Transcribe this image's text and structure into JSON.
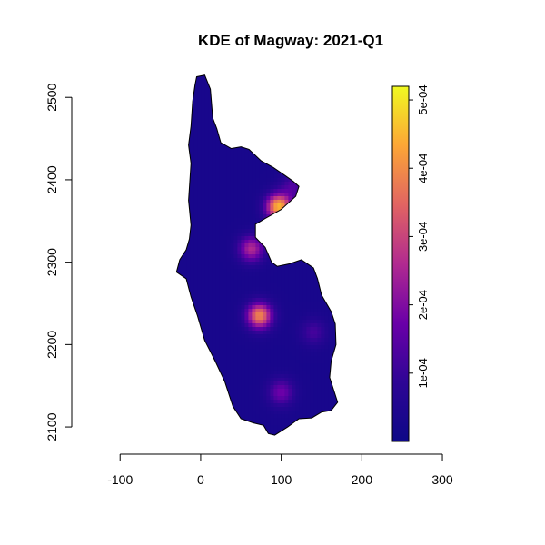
{
  "chart_data": {
    "type": "heatmap",
    "title": "KDE of Magway: 2021-Q1",
    "xlabel": "",
    "ylabel": "",
    "xlim": [
      -160,
      380
    ],
    "ylim": [
      2067,
      2530
    ],
    "x_ticks": [
      -100,
      0,
      100,
      200,
      300
    ],
    "y_ticks": [
      2100,
      2200,
      2300,
      2400,
      2500
    ],
    "x_tick_labels": [
      "-100",
      "0",
      "100",
      "200",
      "300"
    ],
    "y_tick_labels": [
      "2100",
      "2200",
      "2300",
      "2400",
      "2500"
    ],
    "colorbar": {
      "min": 0,
      "max": 0.00052,
      "ticks": [
        0.0001,
        0.0002,
        0.0003,
        0.0004,
        0.0005
      ],
      "tick_labels": [
        "1e-04",
        "2e-04",
        "3e-04",
        "4e-04",
        "5e-04"
      ],
      "colors": [
        "#0d0887",
        "#2e0595",
        "#6a00a8",
        "#b12a90",
        "#e16462",
        "#fca636",
        "#f0f921"
      ]
    },
    "background_density": 3e-05,
    "hotspots": [
      {
        "x": 73,
        "y": 2235,
        "peak": 0.00036
      },
      {
        "x": 97,
        "y": 2367,
        "peak": 0.00042
      },
      {
        "x": 63,
        "y": 2316,
        "peak": 0.00023
      },
      {
        "x": 100,
        "y": 2142,
        "peak": 0.00015
      },
      {
        "x": 140,
        "y": 2215,
        "peak": 9e-05
      },
      {
        "x": 115,
        "y": 2392,
        "peak": 0.0001
      }
    ],
    "region_outline": [
      [
        -5,
        2525
      ],
      [
        5,
        2527
      ],
      [
        12,
        2510
      ],
      [
        15,
        2475
      ],
      [
        20,
        2462
      ],
      [
        25,
        2445
      ],
      [
        38,
        2438
      ],
      [
        50,
        2440
      ],
      [
        60,
        2437
      ],
      [
        75,
        2423
      ],
      [
        90,
        2415
      ],
      [
        105,
        2405
      ],
      [
        115,
        2398
      ],
      [
        122,
        2392
      ],
      [
        118,
        2380
      ],
      [
        100,
        2364
      ],
      [
        80,
        2353
      ],
      [
        68,
        2346
      ],
      [
        68,
        2330
      ],
      [
        80,
        2318
      ],
      [
        88,
        2300
      ],
      [
        95,
        2295
      ],
      [
        110,
        2298
      ],
      [
        125,
        2303
      ],
      [
        140,
        2293
      ],
      [
        145,
        2280
      ],
      [
        150,
        2260
      ],
      [
        162,
        2240
      ],
      [
        167,
        2225
      ],
      [
        168,
        2200
      ],
      [
        162,
        2180
      ],
      [
        160,
        2160
      ],
      [
        165,
        2145
      ],
      [
        170,
        2130
      ],
      [
        162,
        2120
      ],
      [
        150,
        2118
      ],
      [
        138,
        2111
      ],
      [
        122,
        2110
      ],
      [
        108,
        2100
      ],
      [
        92,
        2090
      ],
      [
        84,
        2092
      ],
      [
        78,
        2102
      ],
      [
        65,
        2105
      ],
      [
        50,
        2110
      ],
      [
        40,
        2125
      ],
      [
        30,
        2155
      ],
      [
        18,
        2180
      ],
      [
        5,
        2205
      ],
      [
        -4,
        2235
      ],
      [
        -12,
        2258
      ],
      [
        -18,
        2280
      ],
      [
        -30,
        2288
      ],
      [
        -26,
        2303
      ],
      [
        -18,
        2315
      ],
      [
        -14,
        2328
      ],
      [
        -12,
        2345
      ],
      [
        -15,
        2375
      ],
      [
        -12,
        2420
      ],
      [
        -15,
        2442
      ],
      [
        -12,
        2465
      ],
      [
        -10,
        2495
      ],
      [
        -7,
        2515
      ]
    ]
  }
}
